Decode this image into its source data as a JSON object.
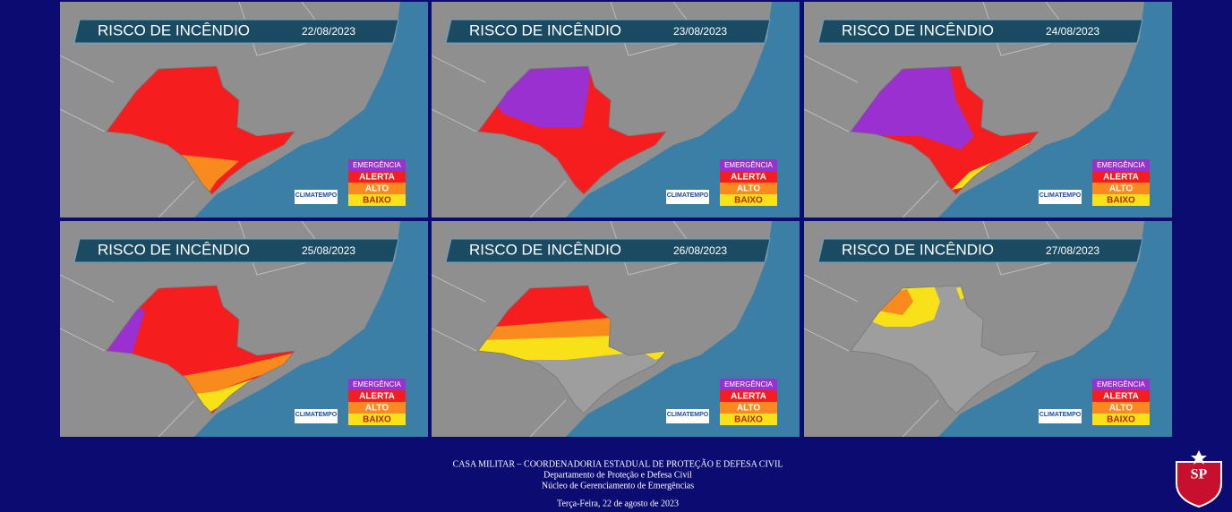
{
  "panels": [
    {
      "title": "RISCO DE INCÊNDIO",
      "date": "22/08/2023"
    },
    {
      "title": "RISCO DE INCÊNDIO",
      "date": "23/08/2023"
    },
    {
      "title": "RISCO DE INCÊNDIO",
      "date": "24/08/2023"
    },
    {
      "title": "RISCO DE INCÊNDIO",
      "date": "25/08/2023"
    },
    {
      "title": "RISCO DE INCÊNDIO",
      "date": "26/08/2023"
    },
    {
      "title": "RISCO DE INCÊNDIO",
      "date": "27/08/2023"
    }
  ],
  "legend": [
    "EMERGÊNCIA",
    "ALERTA",
    "ALTO",
    "BAIXO"
  ],
  "brand": "CLIMATEMPO",
  "footer": {
    "org": "CASA MILITAR – COORDENADORIA ESTADUAL DE PROTEÇÃO E DEFESA CIVIL",
    "department": "Departamento de Proteção e Defesa Civil",
    "nucleus": "Núcleo de Gerenciamento de Emergências",
    "date": "Terça-Feira, 22 de agosto de 2023"
  },
  "logo_text": "SP"
}
